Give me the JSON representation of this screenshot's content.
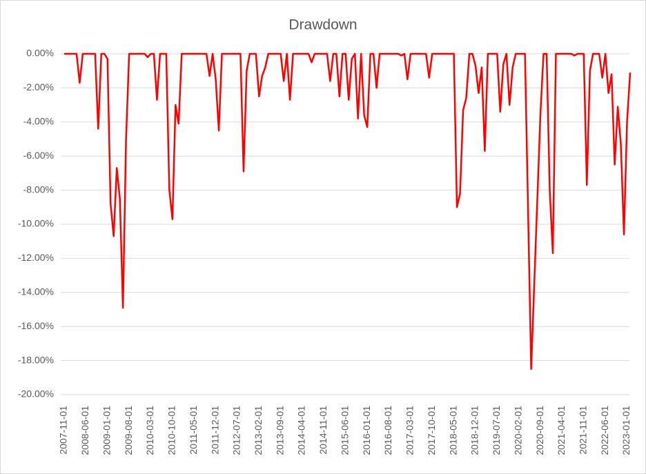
{
  "chart_data": {
    "type": "line",
    "title": "Drawdown",
    "categories": [
      "2007-11-01",
      null,
      null,
      null,
      null,
      null,
      null,
      "2008-06-01",
      null,
      null,
      null,
      null,
      null,
      null,
      "2009-01-01",
      null,
      null,
      null,
      null,
      null,
      null,
      "2009-08-01",
      null,
      null,
      null,
      null,
      null,
      null,
      "2010-03-01",
      null,
      null,
      null,
      null,
      null,
      null,
      "2010-10-01",
      null,
      null,
      null,
      null,
      null,
      null,
      "2011-05-01",
      null,
      null,
      null,
      null,
      null,
      null,
      "2011-12-01",
      null,
      null,
      null,
      null,
      null,
      null,
      "2012-07-01",
      null,
      null,
      null,
      null,
      null,
      null,
      "2013-02-01",
      null,
      null,
      null,
      null,
      null,
      null,
      "2013-09-01",
      null,
      null,
      null,
      null,
      null,
      null,
      "2014-04-01",
      null,
      null,
      null,
      null,
      null,
      null,
      "2014-11-01",
      null,
      null,
      null,
      null,
      null,
      null,
      "2015-06-01",
      null,
      null,
      null,
      null,
      null,
      null,
      "2016-01-01",
      null,
      null,
      null,
      null,
      null,
      null,
      "2016-08-01",
      null,
      null,
      null,
      null,
      null,
      null,
      "2017-03-01",
      null,
      null,
      null,
      null,
      null,
      null,
      "2017-10-01",
      null,
      null,
      null,
      null,
      null,
      null,
      "2018-05-01",
      null,
      null,
      null,
      null,
      null,
      null,
      "2018-12-01",
      null,
      null,
      null,
      null,
      null,
      null,
      "2019-07-01",
      null,
      null,
      null,
      null,
      null,
      null,
      "2020-02-01",
      null,
      null,
      null,
      null,
      null,
      null,
      "2020-09-01",
      null,
      null,
      null,
      null,
      null,
      null,
      "2021-04-01",
      null,
      null,
      null,
      null,
      null,
      null,
      "2021-11-01",
      null,
      null,
      null,
      null,
      null,
      null,
      "2022-06-01",
      null,
      null,
      null,
      null,
      null,
      null,
      "2023-01-01",
      null
    ],
    "values": [
      0,
      0,
      0,
      0,
      0,
      -1.7,
      0,
      0,
      0,
      0,
      0,
      -4.4,
      0,
      0,
      -0.3,
      -8.8,
      -10.7,
      -6.7,
      -8.5,
      -14.9,
      -5.0,
      0,
      0,
      0,
      0,
      0,
      0,
      -0.2,
      0,
      0,
      -2.7,
      0,
      0,
      0,
      -8.0,
      -9.7,
      -3.0,
      -4.1,
      0,
      0,
      0,
      0,
      0,
      0,
      0,
      0,
      0,
      -1.3,
      0,
      -1.5,
      -4.5,
      0,
      0,
      0,
      0,
      0,
      0,
      0,
      -6.9,
      -1.0,
      0,
      0,
      0,
      -2.5,
      -1.3,
      -0.8,
      0,
      0,
      0,
      0,
      0,
      -1.6,
      0,
      -2.7,
      0,
      0,
      0,
      0,
      0,
      0,
      -0.5,
      0,
      0,
      0,
      0,
      0,
      -1.6,
      0,
      0,
      -2.5,
      0,
      0,
      -2.7,
      -0.3,
      0,
      -3.8,
      0,
      -3.6,
      -4.3,
      0,
      0,
      -2.0,
      0,
      0,
      0,
      0,
      0,
      0,
      0,
      -0.1,
      0,
      -1.5,
      0,
      0,
      0,
      0,
      0,
      0,
      -1.4,
      0,
      0,
      0,
      0,
      0,
      0,
      0,
      0,
      -9.0,
      -8.2,
      -3.3,
      -2.6,
      0,
      0,
      -0.7,
      -2.3,
      -0.8,
      -5.7,
      0,
      0,
      0,
      0,
      -3.4,
      -0.6,
      0,
      -3.0,
      -0.8,
      0,
      0,
      0,
      0,
      -9.2,
      -18.5,
      -13.5,
      -8.5,
      -3.5,
      0,
      0,
      -8.0,
      -11.7,
      0,
      0,
      0,
      0,
      0,
      0,
      -0.1,
      0,
      0,
      0,
      -7.7,
      -1.0,
      0,
      0,
      0,
      -1.4,
      0,
      -2.3,
      -1.2,
      -6.5,
      -3.1,
      -5.3,
      -10.6,
      -4.0,
      -1.1
    ],
    "color": "#ff0000",
    "ylim": [
      -20,
      0
    ],
    "yticks": [
      {
        "value": 0,
        "label": "0.00%"
      },
      {
        "value": -2,
        "label": "-2.00%"
      },
      {
        "value": -4,
        "label": "-4.00%"
      },
      {
        "value": -6,
        "label": "-6.00%"
      },
      {
        "value": -8,
        "label": "-8.00%"
      },
      {
        "value": -10,
        "label": "-10.00%"
      },
      {
        "value": -12,
        "label": "-12.00%"
      },
      {
        "value": -14,
        "label": "-14.00%"
      },
      {
        "value": -16,
        "label": "-16.00%"
      },
      {
        "value": -18,
        "label": "-18.00%"
      },
      {
        "value": -20,
        "label": "-20.00%"
      }
    ],
    "grid": true
  }
}
